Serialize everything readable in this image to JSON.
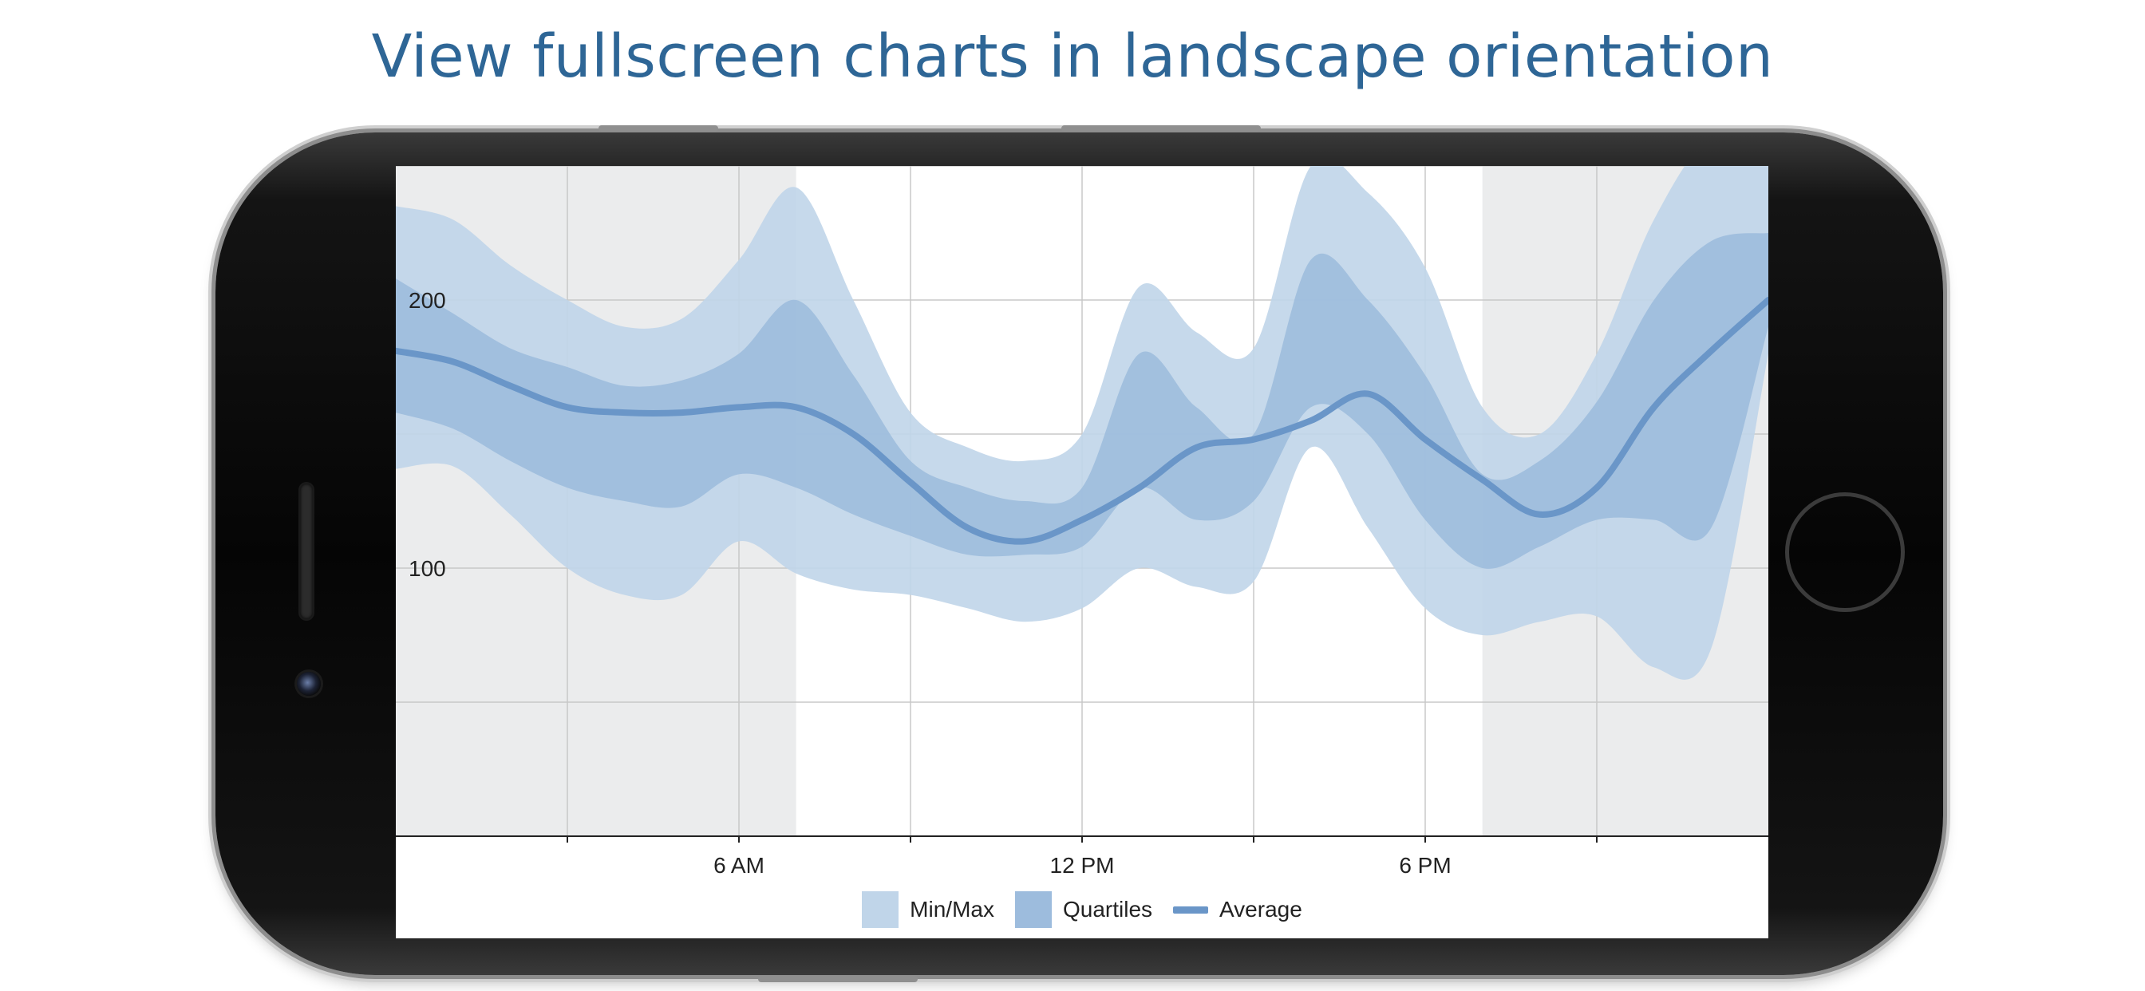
{
  "headline": "View fullscreen charts in landscape orientation",
  "colors": {
    "headline": "#2e6696",
    "minmax": "#c0d5e9",
    "quartiles": "#9dbcdd",
    "average": "#6a96c8",
    "night_shade": "#ebeced",
    "grid": "#c8c8c8"
  },
  "icons": [
    "speaker-grille-icon",
    "front-camera-icon",
    "home-button-icon"
  ],
  "chart_data": {
    "type": "area",
    "x_unit": "hour of day",
    "xlim": [
      0,
      24
    ],
    "ylim": [
      0,
      250
    ],
    "x_ticks": [
      {
        "x": 6,
        "label": "6 AM"
      },
      {
        "x": 12,
        "label": "12 PM"
      },
      {
        "x": 18,
        "label": "6 PM"
      }
    ],
    "x_minor_ticks": [
      3,
      9,
      15,
      21
    ],
    "y_ticks": [
      {
        "y": 100,
        "label": "100"
      },
      {
        "y": 200,
        "label": "200"
      }
    ],
    "y_gridlines": [
      50,
      100,
      150,
      200,
      250
    ],
    "grid": true,
    "shaded_ranges": [
      [
        0,
        7
      ],
      [
        19,
        24
      ]
    ],
    "legend_position": "bottom",
    "x": [
      0,
      1,
      2,
      3,
      4,
      5,
      6,
      7,
      8,
      9,
      10,
      11,
      12,
      13,
      14,
      15,
      16,
      17,
      18,
      19,
      20,
      21,
      22,
      23,
      24
    ],
    "series": [
      {
        "name": "Min/Max",
        "kind": "band",
        "low": [
          137,
          138,
          120,
          100,
          90,
          90,
          110,
          98,
          92,
          90,
          85,
          80,
          85,
          100,
          93,
          95,
          145,
          115,
          85,
          75,
          80,
          82,
          63,
          70,
          180
        ],
        "high": [
          235,
          230,
          213,
          200,
          190,
          193,
          215,
          242,
          200,
          158,
          145,
          140,
          150,
          205,
          188,
          182,
          250,
          240,
          212,
          160,
          150,
          180,
          230,
          260,
          250
        ]
      },
      {
        "name": "Quartiles",
        "kind": "band",
        "low": [
          158,
          152,
          140,
          130,
          125,
          123,
          135,
          130,
          120,
          112,
          105,
          105,
          108,
          130,
          118,
          125,
          160,
          150,
          118,
          100,
          108,
          118,
          118,
          115,
          190
        ],
        "high": [
          208,
          195,
          182,
          175,
          168,
          170,
          180,
          200,
          172,
          140,
          130,
          125,
          130,
          180,
          160,
          150,
          215,
          200,
          172,
          135,
          140,
          162,
          200,
          222,
          225
        ]
      },
      {
        "name": "Average",
        "kind": "line",
        "y": [
          181,
          177,
          168,
          160,
          158,
          158,
          160,
          160,
          150,
          132,
          115,
          110,
          118,
          130,
          145,
          148,
          155,
          165,
          148,
          133,
          120,
          130,
          160,
          181,
          200
        ]
      }
    ]
  }
}
